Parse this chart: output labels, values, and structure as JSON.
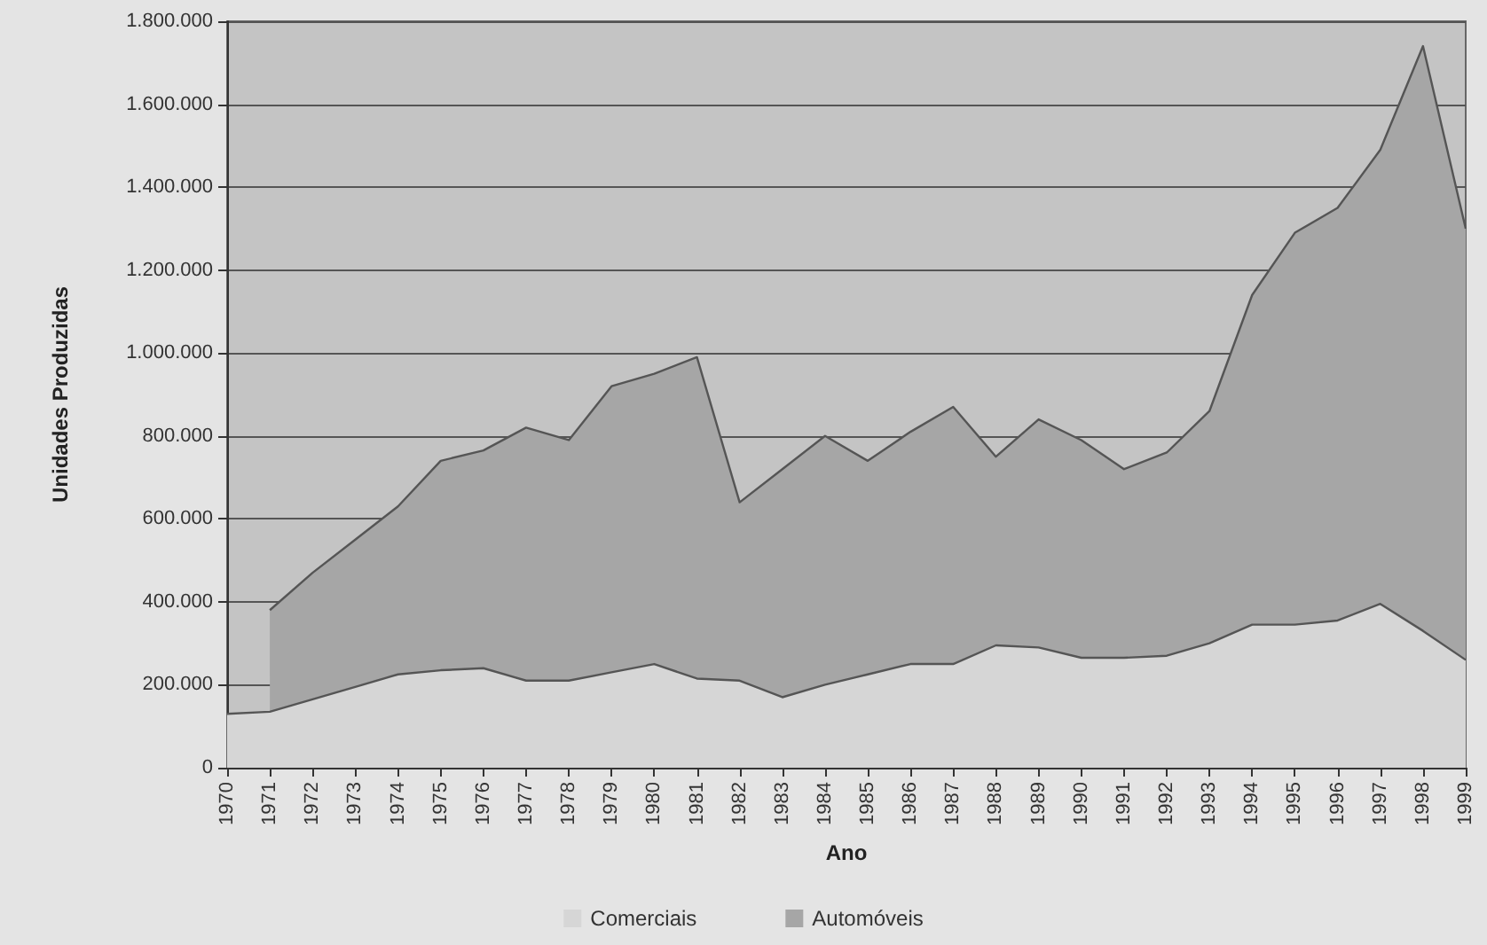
{
  "chart_data": {
    "type": "area",
    "xlabel": "Ano",
    "ylabel": "Unidades Produzidas",
    "categories": [
      "1970",
      "1971",
      "1972",
      "1973",
      "1974",
      "1975",
      "1976",
      "1977",
      "1978",
      "1979",
      "1980",
      "1981",
      "1982",
      "1983",
      "1984",
      "1985",
      "1986",
      "1987",
      "1988",
      "1989",
      "1990",
      "1991",
      "1992",
      "1993",
      "1994",
      "1995",
      "1996",
      "1997",
      "1998",
      "1999"
    ],
    "series": [
      {
        "name": "Comerciais",
        "color": "#d6d6d6",
        "values": [
          130000,
          135000,
          165000,
          195000,
          225000,
          235000,
          240000,
          210000,
          210000,
          230000,
          250000,
          215000,
          210000,
          170000,
          200000,
          225000,
          250000,
          250000,
          295000,
          290000,
          265000,
          265000,
          270000,
          300000,
          345000,
          345000,
          355000,
          395000,
          330000,
          260000
        ]
      },
      {
        "name": "Automóveis",
        "color": "#a6a6a6",
        "values": [
          null,
          380000,
          470000,
          550000,
          630000,
          740000,
          765000,
          820000,
          790000,
          920000,
          950000,
          990000,
          640000,
          720000,
          800000,
          740000,
          810000,
          870000,
          750000,
          840000,
          790000,
          720000,
          760000,
          860000,
          1140000,
          1290000,
          1350000,
          1490000,
          1740000,
          1300000
        ]
      }
    ],
    "ylim": [
      0,
      1800000
    ],
    "yticks": [
      {
        "value": 0,
        "label": "0"
      },
      {
        "value": 200000,
        "label": "200.000"
      },
      {
        "value": 400000,
        "label": "400.000"
      },
      {
        "value": 600000,
        "label": "600.000"
      },
      {
        "value": 800000,
        "label": "800.000"
      },
      {
        "value": 1000000,
        "label": "1.000.000"
      },
      {
        "value": 1200000,
        "label": "1.200.000"
      },
      {
        "value": 1400000,
        "label": "1.400.000"
      },
      {
        "value": 1600000,
        "label": "1.600.000"
      },
      {
        "value": 1800000,
        "label": "1.800.000"
      }
    ],
    "grid": "y",
    "legend": "bottom",
    "marker": "none"
  }
}
